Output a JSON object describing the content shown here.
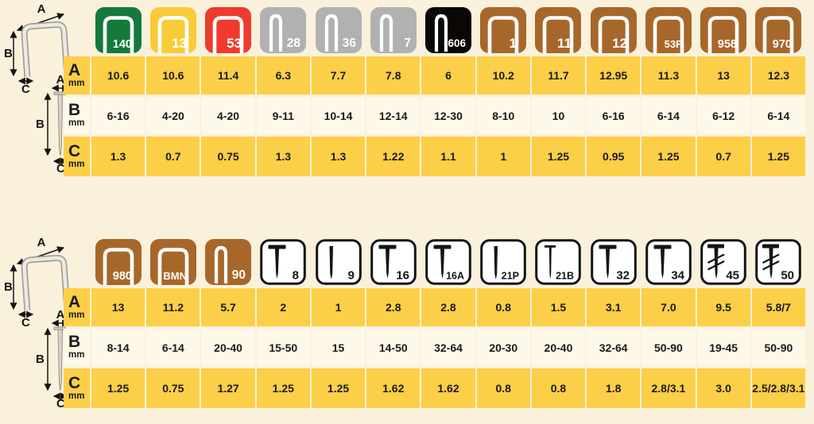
{
  "page": {
    "background": "#FAF1DC",
    "row_yellow": "#FCCF48",
    "row_cream": "#FEF8E8",
    "text_color": "#1A1A1A"
  },
  "diagram_labels": {
    "width": "A",
    "length": "B",
    "thickness": "C"
  },
  "row_header_unit": "mm",
  "tables": [
    {
      "name": "staples",
      "rows": [
        "A",
        "B",
        "C"
      ],
      "columns": [
        {
          "code": "140",
          "icon": "staple-wide",
          "bg": "#15793B",
          "fg": "#FFFFFF",
          "A": "10.6",
          "B": "6-16",
          "C": "1.3"
        },
        {
          "code": "13",
          "icon": "staple-wide",
          "bg": "#F9CB38",
          "fg": "#FFFFFF",
          "A": "10.6",
          "B": "4-20",
          "C": "0.7"
        },
        {
          "code": "53",
          "icon": "staple-wide",
          "bg": "#EF3A2D",
          "fg": "#FFFFFF",
          "A": "11.4",
          "B": "4-20",
          "C": "0.75"
        },
        {
          "code": "28",
          "icon": "staple-narrow",
          "bg": "#B1B1B1",
          "fg": "#FFFFFF",
          "A": "6.3",
          "B": "9-11",
          "C": "1.3"
        },
        {
          "code": "36",
          "icon": "staple-narrow",
          "bg": "#B1B1B1",
          "fg": "#FFFFFF",
          "A": "7.7",
          "B": "10-14",
          "C": "1.3"
        },
        {
          "code": "7",
          "icon": "staple-narrow",
          "bg": "#B1B1B1",
          "fg": "#FFFFFF",
          "A": "7.8",
          "B": "12-14",
          "C": "1.22"
        },
        {
          "code": "606",
          "icon": "staple-narrow",
          "bg": "#0A0704",
          "fg": "#FFFFFF",
          "A": "6",
          "B": "12-30",
          "C": "1.1"
        },
        {
          "code": "1",
          "icon": "staple-wide",
          "bg": "#A8672A",
          "fg": "#FFFFFF",
          "A": "10.2",
          "B": "8-10",
          "C": "1"
        },
        {
          "code": "11",
          "icon": "staple-wide",
          "bg": "#A8672A",
          "fg": "#FFFFFF",
          "A": "11.7",
          "B": "10",
          "C": "1.25"
        },
        {
          "code": "12",
          "icon": "staple-wide",
          "bg": "#A8672A",
          "fg": "#FFFFFF",
          "A": "12.95",
          "B": "6-16",
          "C": "0.95"
        },
        {
          "code": "53F",
          "icon": "staple-wide",
          "bg": "#A8672A",
          "fg": "#FFFFFF",
          "A": "11.3",
          "B": "6-14",
          "C": "1.25"
        },
        {
          "code": "958",
          "icon": "staple-wide",
          "bg": "#A8672A",
          "fg": "#FFFFFF",
          "A": "13",
          "B": "6-12",
          "C": "0.7"
        },
        {
          "code": "970",
          "icon": "staple-wide",
          "bg": "#A8672A",
          "fg": "#FFFFFF",
          "A": "12.3",
          "B": "6-14",
          "C": "1.25"
        }
      ]
    },
    {
      "name": "staples-and-nails",
      "rows": [
        "A",
        "B",
        "C"
      ],
      "columns": [
        {
          "code": "980",
          "icon": "staple-wide",
          "bg": "#A8672A",
          "fg": "#FFFFFF",
          "A": "13",
          "B": "8-14",
          "C": "1.25"
        },
        {
          "code": "BMN",
          "icon": "staple-wide",
          "bg": "#A8672A",
          "fg": "#FFFFFF",
          "A": "11.2",
          "B": "6-14",
          "C": "0.75"
        },
        {
          "code": "90",
          "icon": "staple-narrow",
          "bg": "#A8672A",
          "fg": "#FFFFFF",
          "A": "5.7",
          "B": "20-40",
          "C": "1.27"
        },
        {
          "code": "8",
          "icon": "nail-t",
          "bg": "#FFFFFF",
          "fg": "#141414",
          "A": "2",
          "B": "15-50",
          "C": "1.25"
        },
        {
          "code": "9",
          "icon": "pin",
          "bg": "#FFFFFF",
          "fg": "#141414",
          "A": "1",
          "B": "15",
          "C": "1.25"
        },
        {
          "code": "16",
          "icon": "nail-t",
          "bg": "#FFFFFF",
          "fg": "#141414",
          "A": "2.8",
          "B": "14-50",
          "C": "1.62"
        },
        {
          "code": "16A",
          "icon": "nail-t",
          "bg": "#FFFFFF",
          "fg": "#141414",
          "A": "2.8",
          "B": "32-64",
          "C": "1.62"
        },
        {
          "code": "21P",
          "icon": "pin",
          "bg": "#FFFFFF",
          "fg": "#141414",
          "A": "0.8",
          "B": "20-30",
          "C": "0.8"
        },
        {
          "code": "21B",
          "icon": "nail-brad",
          "bg": "#FFFFFF",
          "fg": "#141414",
          "A": "1.5",
          "B": "20-40",
          "C": "0.8"
        },
        {
          "code": "32",
          "icon": "nail-t",
          "bg": "#FFFFFF",
          "fg": "#141414",
          "A": "3.1",
          "B": "32-64",
          "C": "1.8"
        },
        {
          "code": "34",
          "icon": "nail-t",
          "bg": "#FFFFFF",
          "fg": "#141414",
          "A": "7.0",
          "B": "50-90",
          "C": "2.8/3.1"
        },
        {
          "code": "45",
          "icon": "nail-serrated",
          "bg": "#FFFFFF",
          "fg": "#141414",
          "A": "9.5",
          "B": "19-45",
          "C": "3.0"
        },
        {
          "code": "50",
          "icon": "nail-serrated",
          "bg": "#FFFFFF",
          "fg": "#141414",
          "A": "5.8/7",
          "B": "50-90",
          "C": "2.5/2.8/3.1"
        }
      ]
    }
  ]
}
